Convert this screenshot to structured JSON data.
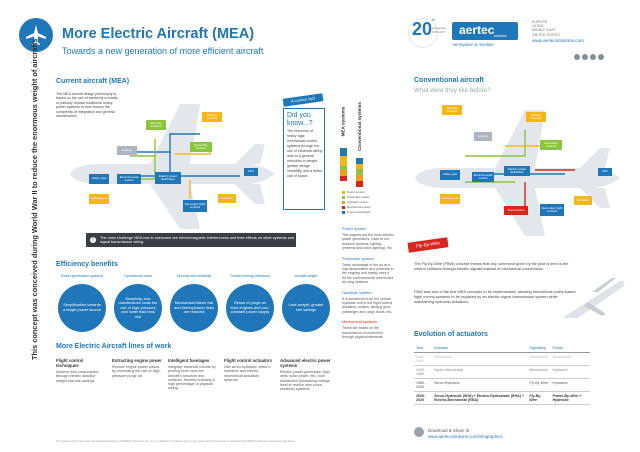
{
  "header": {
    "title": "More Electric Aircraft (MEA)",
    "subtitle": "Towards a new generation of more efficient aircraft",
    "badge_number": "20",
    "badge_suffix": "th",
    "badge_text1": "anniversary",
    "badge_text2": "1997-2017",
    "logo_text": "aertec",
    "logo_sub": "solutions",
    "motto": "Aerospace & Aviation",
    "regions": [
      "EUROPE",
      "LATAM",
      "MIDDLE EAST",
      "UNITED STATES"
    ],
    "website": "www.aertecsolutions.com",
    "social_icons": [
      "linkedin-icon",
      "twitter-icon",
      "youtube-icon",
      "facebook-icon"
    ]
  },
  "side_text": "This concept was conceived during World War II to reduce the enormous weight of aircrafts",
  "current_aircraft": {
    "title": "Current aircraft (MEA)",
    "description": "The MEA aircraft design philosophy is based on the use of electricity to totally or partially replace traditional heavy power systems to thus reduce the complexity of integration and general maintenance.",
    "boxes": {
      "deicing": "De-icing systems",
      "engines": "Engines",
      "primary_controls": "Primary controls",
      "secondary_controls": "Secondary controls",
      "galley": "Galley pipe",
      "environmental": "Environmental control",
      "electric_power": "Electric power distribution",
      "apu": "APU",
      "landing_gear": "Landing gear",
      "secondary_flight": "Secondary flight controls",
      "actuation": "Actuation"
    },
    "challenge": "The main challenge MEA has to overcome are electromagnetic interferences and their effects on other systems and signal transmission wiring."
  },
  "curious_fact": {
    "label": "A curious fact",
    "question": "Did you know...?",
    "text": "The reduction of heavy rigid mechanical control systems through the use of electrical wiring lead to a general reduction in weight, greater design versatility and a better use of space."
  },
  "systems_chart": {
    "label_mea": "MEA systems",
    "label_conv": "Conventional systems",
    "legend": [
      {
        "name": "Power system",
        "color": "#f3b71a"
      },
      {
        "name": "Pneumatic system",
        "color": "#8bc43f"
      },
      {
        "name": "Hydraulic system",
        "color": "#f59c1a"
      },
      {
        "name": "Mechanical system",
        "color": "#d9261c"
      },
      {
        "name": "Total power/weight",
        "color": "#1f76b8"
      }
    ]
  },
  "power_notes": [
    {
      "title": "Power system",
      "text": "The engines are the main electric power generators. Used to run avionics systems, lighting (external and cabin lighting), etc."
    },
    {
      "title": "Pneumatic system",
      "text": "Takes advantage of the air at a high temperature and pressure in the engines and mainly uses it for the environmental control and de-icing systems."
    },
    {
      "title": "Hydraulic system",
      "text": "It is transferred from the central hydraulic unit to the flight control actuators, brakes, landing gear, passenger and cargo doors, etc."
    },
    {
      "title": "Mechanical systems",
      "text": "These are based on the transmission of movement through physical elements."
    }
  ],
  "efficiency": {
    "title": "Efficiency benefits",
    "items": [
      {
        "arc": "Power generation systems",
        "text": "Simplification towards a single power source"
      },
      {
        "arc": "Operational costs",
        "text": "Simplicity, less maintenance costs the use of high-pressure and lower fluid leak risk"
      },
      {
        "arc": "Security and reliability",
        "text": "Mechanical failure risk and fire/explosion risks are reduced"
      },
      {
        "arc": "Greater energy efficiency",
        "text": "Reuse of purge air from engines and non-constant power supply"
      },
      {
        "arc": "Aircraft weight",
        "text": "Less weight, greater fuel savings"
      }
    ]
  },
  "lines_of_work": {
    "title": "More Electric Aircraft lines of work",
    "items": [
      {
        "title": "Flight control techniques",
        "text": "Achieve less consumption through electric actuator weight and use savings."
      },
      {
        "title": "Extracting engine power",
        "text": "Reduce engine power losses by minimising the use of high-pressure purge air."
      },
      {
        "title": "Intelligent fuselages",
        "text": "Integrate electrical circuits by printing them onto the aircraft's structure and surfaces, thereby reducing a high percentage of physical wiring."
      },
      {
        "title": "Flight control actuators",
        "text": "Use servo-hydraulic, electro-hydraulic and electro-mechanical actuators systems."
      },
      {
        "title": "Advanced electric power systems",
        "text": "Electric power generation (fuel cells, solar power, etc.) and distribution (increasing voltage level to reduce wire cross-sections) systems."
      }
    ]
  },
  "conventional": {
    "title": "Conventional aircraft",
    "subtitle": "What were they like before?",
    "transmission": "Transmission"
  },
  "fly_by_wire": {
    "label": "Fly-By-Wire",
    "text1": "The Fly-By-Wire (FBW) concept means that any command given by the pilot is sent to the control surfaces through electric signals instead of mechanical connections.",
    "text2": "FBW was one of the first MEA concepts to be implemented, allowing mechanical pulley-based flight control systems to be replaced by an electric signal transmission system while maintaining hydraulic actuators."
  },
  "actuators": {
    "title": "Evolution of actuators",
    "headers": [
      "Year",
      "Actuator",
      "Signalling",
      "Power"
    ],
    "rows": [
      [
        "Until 1940",
        "Mechanical",
        "Mechanical",
        "Mechanical"
      ],
      [
        "1940-1980",
        "Hydro-Mechanical",
        "Mechanical",
        "Hydraulic"
      ],
      [
        "1980-2000",
        "Servo-Hydraulic",
        "Fly-By-Wire",
        "Hydraulic"
      ],
      [
        "2000-2020",
        "Servo-Hydraulic (SHA) + Electro-Hydrostatic (EHA) + Electro-Mechanical (EMA)",
        "Fly-By-Wire",
        "Power-By-Wire + Hydraulic"
      ]
    ]
  },
  "footer": {
    "download": "Download & Share it!",
    "link": "www.aertecsolutions.com/infographics",
    "disclaimer": "The contents of this document are intellectual property of AERTEC Solutions. Any copy or diffusion in whatever way by any means of this document not authorised by AERTEC Solutions will lead to legal action."
  }
}
